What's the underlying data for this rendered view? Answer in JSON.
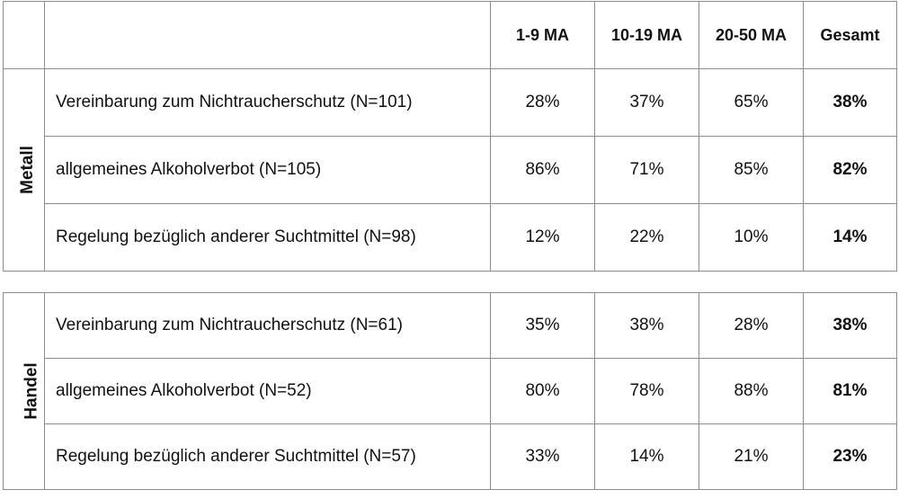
{
  "headers": {
    "empty_left": "",
    "empty_label": "",
    "col1": "1-9 MA",
    "col2": "10-19 MA",
    "col3": "20-50 MA",
    "col4": "Gesamt"
  },
  "metall": {
    "label": "Metall",
    "rows": [
      {
        "label": "Vereinbarung zum Nichtraucherschutz (N=101)",
        "v1": "28%",
        "v2": "37%",
        "v3": "65%",
        "total": "38%"
      },
      {
        "label": "allgemeines Alkoholverbot (N=105)",
        "v1": "86%",
        "v2": "71%",
        "v3": "85%",
        "total": "82%"
      },
      {
        "label": "Regelung bezüglich anderer Suchtmittel (N=98)",
        "v1": "12%",
        "v2": "22%",
        "v3": "10%",
        "total": "14%"
      }
    ]
  },
  "handel": {
    "label": "Handel",
    "rows": [
      {
        "label": "Vereinbarung zum Nichtraucherschutz (N=61)",
        "v1": "35%",
        "v2": "38%",
        "v3": "28%",
        "total": "38%"
      },
      {
        "label": "allgemeines Alkoholverbot (N=52)",
        "v1": "80%",
        "v2": "78%",
        "v3": "88%",
        "total": "81%"
      },
      {
        "label": "Regelung bezüglich anderer Suchtmittel (N=57)",
        "v1": "33%",
        "v2": "14%",
        "v3": "21%",
        "total": "23%"
      }
    ]
  }
}
